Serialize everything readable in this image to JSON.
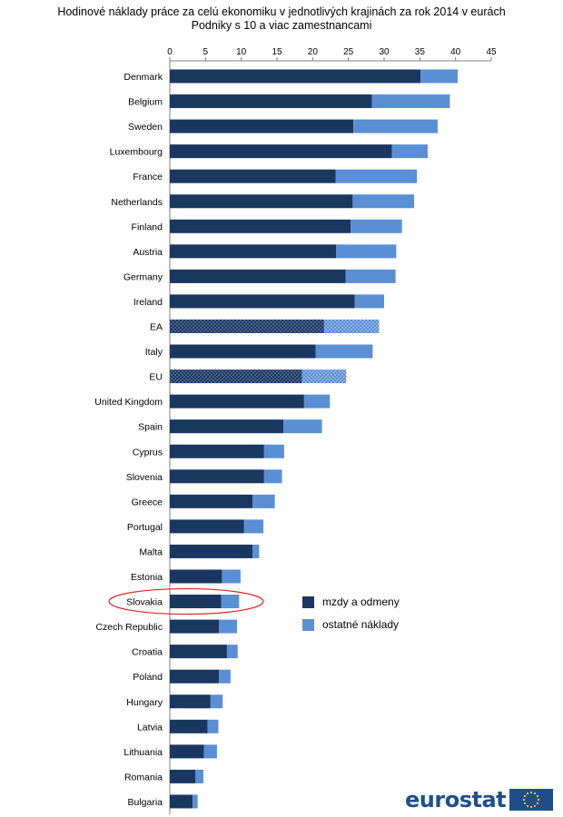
{
  "chart_data": {
    "type": "bar",
    "orientation": "horizontal",
    "stacked": true,
    "title": "Hodinové náklady práce za celú ekonomiku v jednotlivých krajinách za rok 2014 v eurách",
    "subtitle": "Podniky s 10 a viac zamestnancami",
    "xlabel": "",
    "ylabel": "",
    "xlim": [
      0,
      45
    ],
    "x_ticks": [
      0,
      5,
      10,
      15,
      20,
      25,
      30,
      35,
      40,
      45
    ],
    "axis_position": "top",
    "grid": false,
    "legend_position": "right",
    "categories": [
      "Denmark",
      "Belgium",
      "Sweden",
      "Luxembourg",
      "France",
      "Netherlands",
      "Finland",
      "Austria",
      "Germany",
      "Ireland",
      "EA",
      "Italy",
      "EU",
      "United Kingdom",
      "Spain",
      "Cyprus",
      "Slovenia",
      "Greece",
      "Portugal",
      "Malta",
      "Estonia",
      "Slovakia",
      "Czech Republic",
      "Croatia",
      "Poland",
      "Hungary",
      "Latvia",
      "Lithuania",
      "Romania",
      "Bulgaria"
    ],
    "series": [
      {
        "name": "mzdy a odmeny",
        "color": "#1a3760",
        "values": [
          35.1,
          28.3,
          25.7,
          31.1,
          23.2,
          25.6,
          25.3,
          23.3,
          24.6,
          25.9,
          21.6,
          20.4,
          18.5,
          18.8,
          15.9,
          13.2,
          13.2,
          11.6,
          10.4,
          11.6,
          7.3,
          7.2,
          6.9,
          8.0,
          6.9,
          5.7,
          5.3,
          4.8,
          3.6,
          3.2
        ]
      },
      {
        "name": "ostatné náklady",
        "color": "#5a8fd6",
        "values": [
          5.2,
          10.9,
          11.8,
          5.0,
          11.4,
          8.6,
          7.2,
          8.4,
          7.0,
          4.1,
          7.7,
          8.0,
          6.2,
          3.6,
          5.4,
          2.8,
          2.5,
          3.1,
          2.7,
          0.9,
          2.6,
          2.5,
          2.5,
          1.5,
          1.6,
          1.7,
          1.5,
          1.8,
          1.1,
          0.7
        ]
      }
    ],
    "hatched_categories": [
      "EA",
      "EU"
    ],
    "highlighted_category": "Slovakia"
  },
  "logo": {
    "text": "eurostat"
  }
}
